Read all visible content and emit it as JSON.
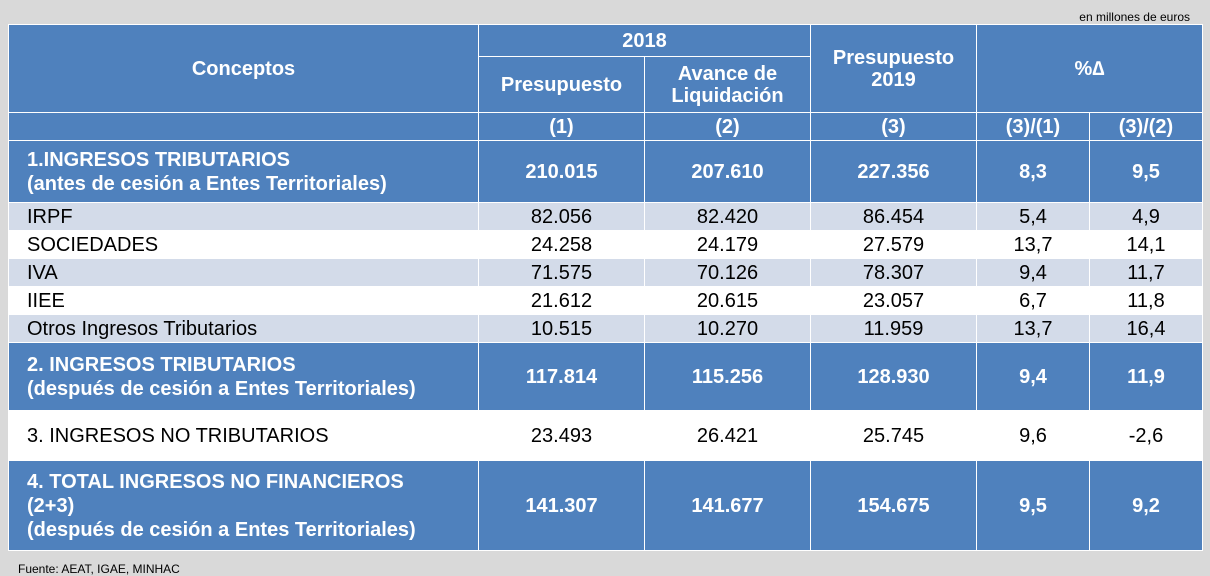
{
  "units": "en millones de euros",
  "header": {
    "conceptos": "Conceptos",
    "year_2018": "2018",
    "presupuesto": "Presupuesto",
    "avance_line1": "Avance de",
    "avance_line2": "Liquidación",
    "presupuesto2019_line1": "Presupuesto",
    "presupuesto2019_line2": "2019",
    "pct_delta": "%∆",
    "col1": "(1)",
    "col2": "(2)",
    "col3": "(3)",
    "col4": "(3)/(1)",
    "col5": "(3)/(2)"
  },
  "rows": [
    {
      "style": "bold",
      "concept_lines": [
        "1.INGRESOS TRIBUTARIOS",
        "(antes de cesión a Entes Territoriales)"
      ],
      "values": [
        "210.015",
        "207.610",
        "227.356",
        "8,3",
        "9,5"
      ]
    },
    {
      "style": "light",
      "concept_lines": [
        "IRPF"
      ],
      "values": [
        "82.056",
        "82.420",
        "86.454",
        "5,4",
        "4,9"
      ]
    },
    {
      "style": "white",
      "concept_lines": [
        "SOCIEDADES"
      ],
      "values": [
        "24.258",
        "24.179",
        "27.579",
        "13,7",
        "14,1"
      ]
    },
    {
      "style": "light",
      "concept_lines": [
        "IVA"
      ],
      "values": [
        "71.575",
        "70.126",
        "78.307",
        "9,4",
        "11,7"
      ]
    },
    {
      "style": "white",
      "concept_lines": [
        "IIEE"
      ],
      "values": [
        "21.612",
        "20.615",
        "23.057",
        "6,7",
        "11,8"
      ]
    },
    {
      "style": "light",
      "concept_lines": [
        "Otros Ingresos Tributarios"
      ],
      "values": [
        "10.515",
        "10.270",
        "11.959",
        "13,7",
        "16,4"
      ]
    },
    {
      "style": "bold",
      "concept_lines": [
        "2. INGRESOS TRIBUTARIOS",
        "(después de cesión a Entes Territoriales)"
      ],
      "values": [
        "117.814",
        "115.256",
        "128.930",
        "9,4",
        "11,9"
      ]
    },
    {
      "style": "white",
      "concept_lines": [
        "3. INGRESOS NO TRIBUTARIOS"
      ],
      "values": [
        "23.493",
        "26.421",
        "25.745",
        "9,6",
        "-2,6"
      ]
    },
    {
      "style": "bold",
      "concept_lines": [
        "4. TOTAL INGRESOS NO FINANCIEROS",
        "(2+3)",
        "(después de cesión a Entes Territoriales)"
      ],
      "values": [
        "141.307",
        "141.677",
        "154.675",
        "9,5",
        "9,2"
      ]
    }
  ],
  "source": "Fuente: AEAT, IGAE, MINHAC"
}
